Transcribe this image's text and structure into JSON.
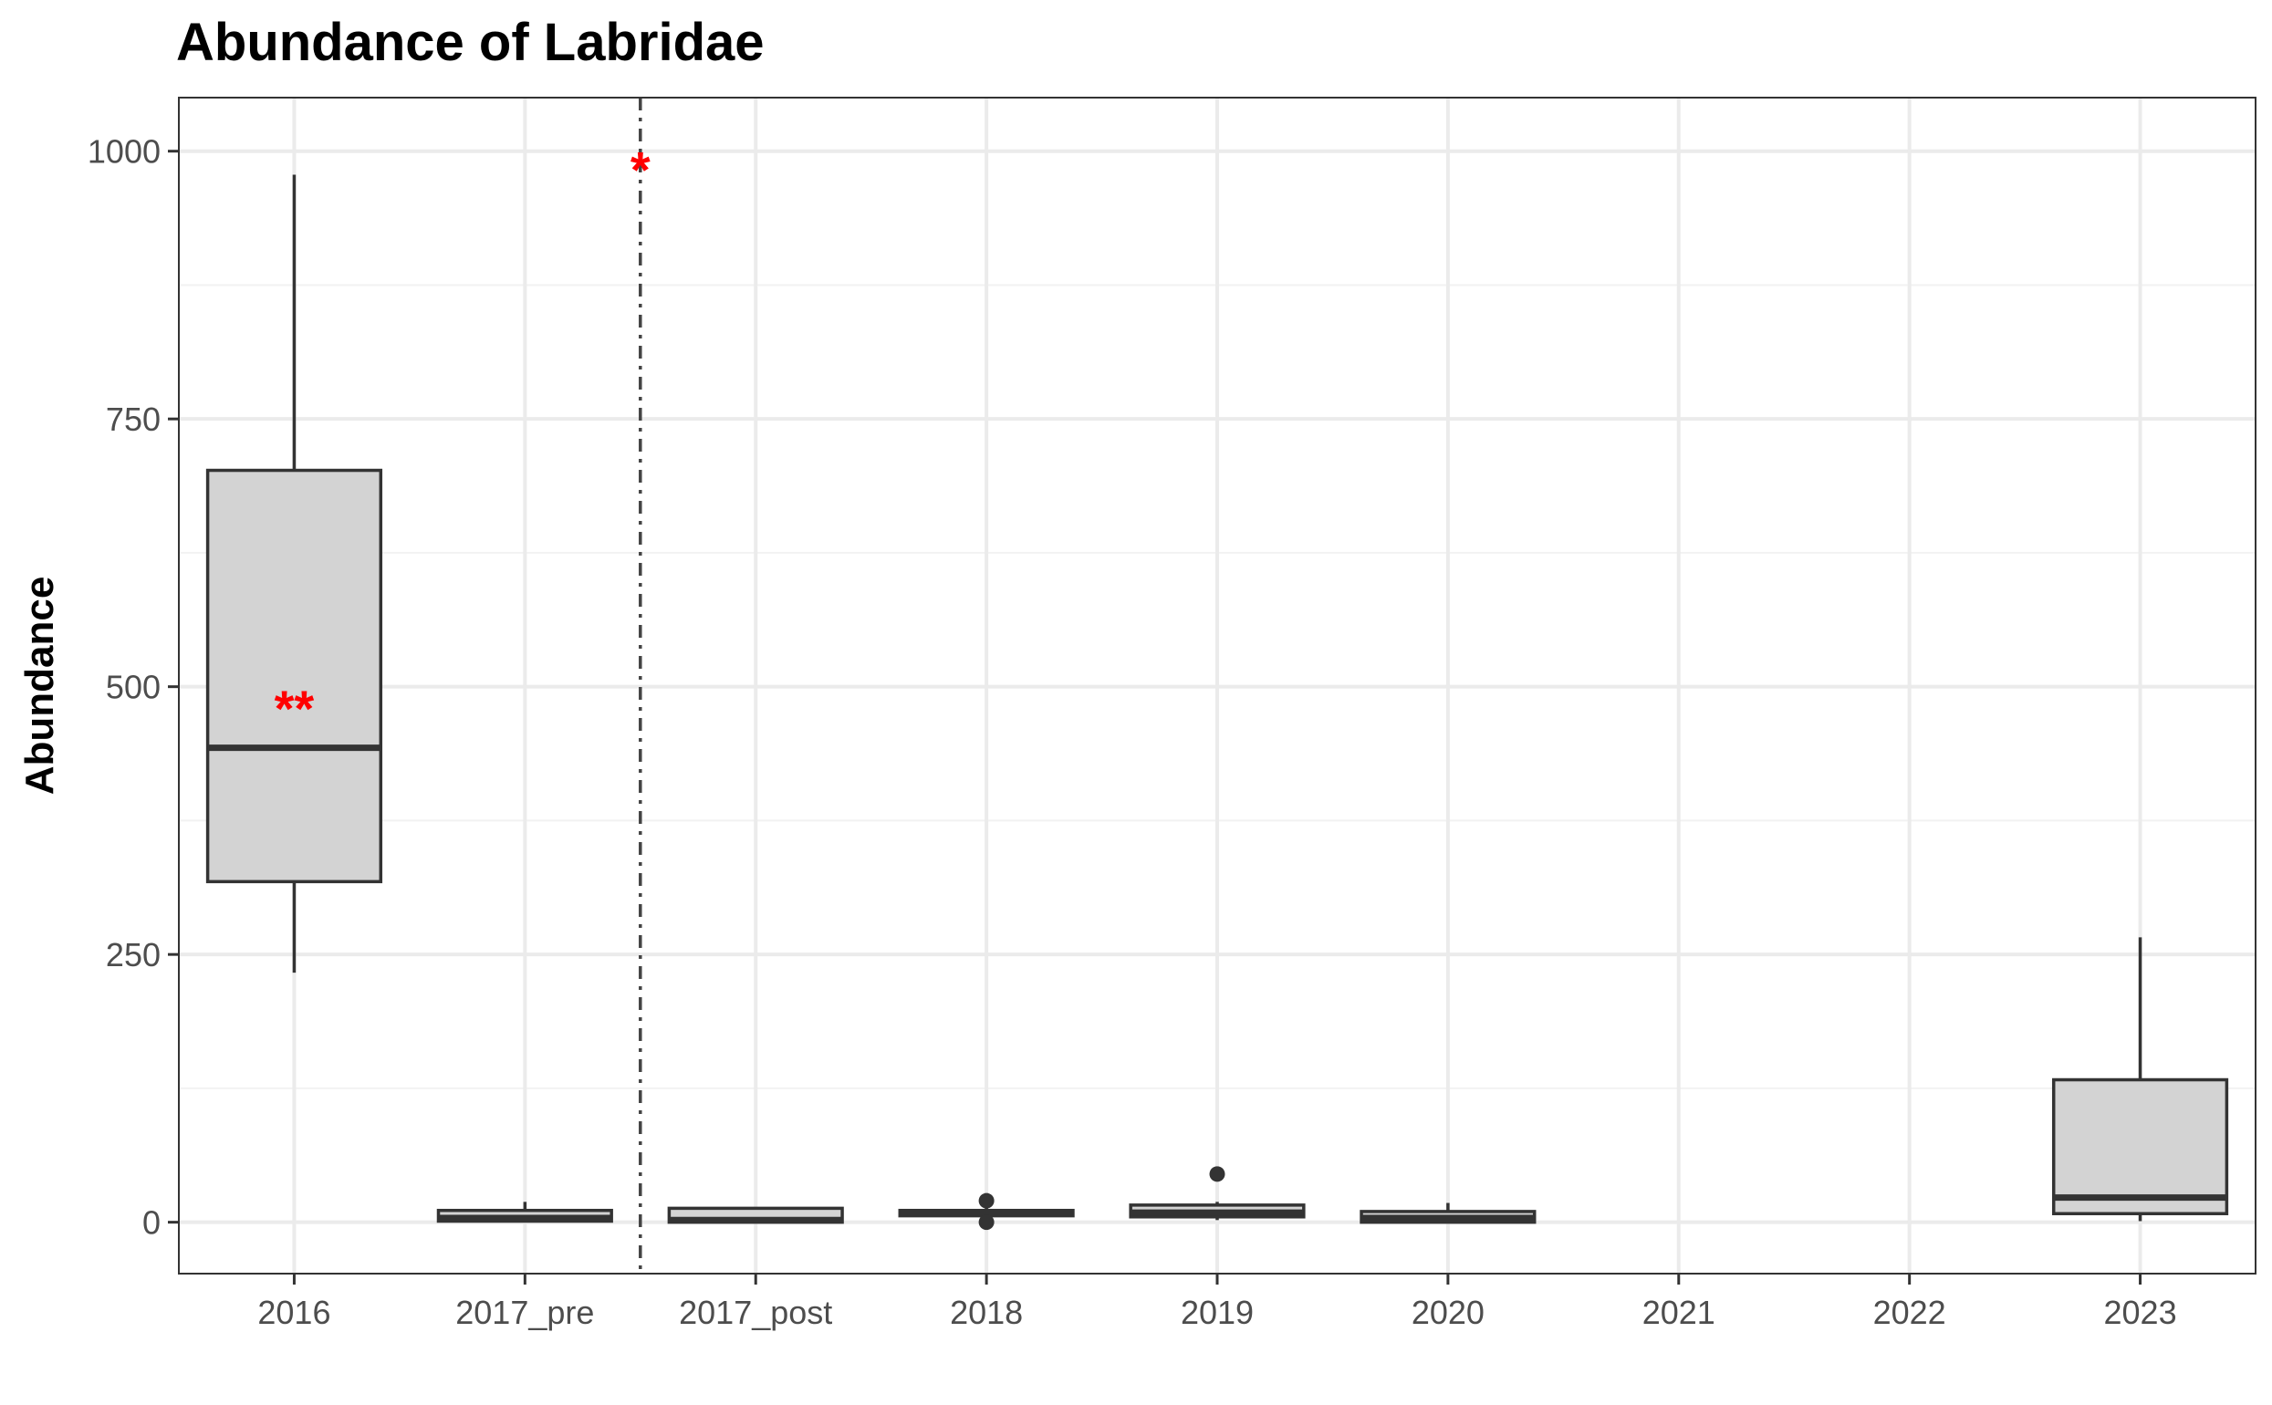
{
  "chart_data": {
    "type": "boxplot",
    "title": "Abundance of Labridae",
    "xlabel": "",
    "ylabel": "Abundance",
    "ylim": [
      -48,
      1050
    ],
    "yticks": [
      0,
      250,
      500,
      750,
      1000
    ],
    "ytick_labels": [
      "0",
      "250",
      "500",
      "750",
      "1000"
    ],
    "categories": [
      "2016",
      "2017_pre",
      "2017_post",
      "2018",
      "2019",
      "2020",
      "2021",
      "2022",
      "2023"
    ],
    "grid": true,
    "box_fill": "#d3d3d3",
    "line_color": "#333333",
    "boxes": [
      {
        "category": "2016",
        "whisker_low": 233,
        "q1": 318,
        "median": 443,
        "q3": 702,
        "whisker_high": 978,
        "outliers": []
      },
      {
        "category": "2017_pre",
        "whisker_low": 0,
        "q1": 1,
        "median": 4,
        "q3": 11,
        "whisker_high": 19,
        "outliers": []
      },
      {
        "category": "2017_post",
        "whisker_low": 0,
        "q1": 0,
        "median": 2,
        "q3": 13,
        "whisker_high": 13,
        "outliers": []
      },
      {
        "category": "2018",
        "whisker_low": 5,
        "q1": 6,
        "median": 9,
        "q3": 11,
        "whisker_high": 13,
        "outliers": [
          20,
          0
        ]
      },
      {
        "category": "2019",
        "whisker_low": 2,
        "q1": 5,
        "median": 9,
        "q3": 16,
        "whisker_high": 19,
        "outliers": [
          45
        ]
      },
      {
        "category": "2020",
        "whisker_low": 0,
        "q1": 0,
        "median": 4,
        "q3": 10,
        "whisker_high": 18,
        "outliers": []
      },
      {
        "category": "2023",
        "whisker_low": 1,
        "q1": 8,
        "median": 23,
        "q3": 133,
        "whisker_high": 266,
        "outliers": []
      }
    ],
    "reference_line": {
      "between": [
        "2017_pre",
        "2017_post"
      ],
      "style": "dashdot"
    },
    "annotations": [
      {
        "text": "*",
        "position": "between",
        "between": [
          "2017_pre",
          "2017_post"
        ],
        "y": 990,
        "color": "#ff0000"
      },
      {
        "text": "**",
        "category": "2016",
        "y": 487,
        "color": "#ff0000"
      }
    ]
  }
}
